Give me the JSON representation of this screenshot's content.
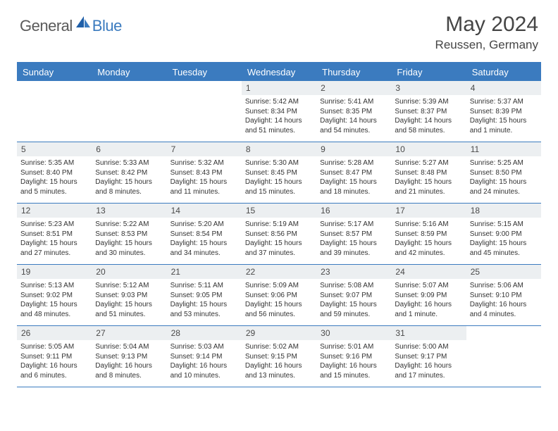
{
  "brand": {
    "part1": "General",
    "part2": "Blue"
  },
  "title": "May 2024",
  "location": "Reussen, Germany",
  "colors": {
    "accent": "#3b7bbf",
    "dayNumBg": "#eceff1",
    "text": "#454545"
  },
  "weekdays": [
    "Sunday",
    "Monday",
    "Tuesday",
    "Wednesday",
    "Thursday",
    "Friday",
    "Saturday"
  ],
  "weeks": [
    [
      null,
      null,
      null,
      {
        "n": "1",
        "sunrise": "5:42 AM",
        "sunset": "8:34 PM",
        "daylight": "14 hours and 51 minutes."
      },
      {
        "n": "2",
        "sunrise": "5:41 AM",
        "sunset": "8:35 PM",
        "daylight": "14 hours and 54 minutes."
      },
      {
        "n": "3",
        "sunrise": "5:39 AM",
        "sunset": "8:37 PM",
        "daylight": "14 hours and 58 minutes."
      },
      {
        "n": "4",
        "sunrise": "5:37 AM",
        "sunset": "8:39 PM",
        "daylight": "15 hours and 1 minute."
      }
    ],
    [
      {
        "n": "5",
        "sunrise": "5:35 AM",
        "sunset": "8:40 PM",
        "daylight": "15 hours and 5 minutes."
      },
      {
        "n": "6",
        "sunrise": "5:33 AM",
        "sunset": "8:42 PM",
        "daylight": "15 hours and 8 minutes."
      },
      {
        "n": "7",
        "sunrise": "5:32 AM",
        "sunset": "8:43 PM",
        "daylight": "15 hours and 11 minutes."
      },
      {
        "n": "8",
        "sunrise": "5:30 AM",
        "sunset": "8:45 PM",
        "daylight": "15 hours and 15 minutes."
      },
      {
        "n": "9",
        "sunrise": "5:28 AM",
        "sunset": "8:47 PM",
        "daylight": "15 hours and 18 minutes."
      },
      {
        "n": "10",
        "sunrise": "5:27 AM",
        "sunset": "8:48 PM",
        "daylight": "15 hours and 21 minutes."
      },
      {
        "n": "11",
        "sunrise": "5:25 AM",
        "sunset": "8:50 PM",
        "daylight": "15 hours and 24 minutes."
      }
    ],
    [
      {
        "n": "12",
        "sunrise": "5:23 AM",
        "sunset": "8:51 PM",
        "daylight": "15 hours and 27 minutes."
      },
      {
        "n": "13",
        "sunrise": "5:22 AM",
        "sunset": "8:53 PM",
        "daylight": "15 hours and 30 minutes."
      },
      {
        "n": "14",
        "sunrise": "5:20 AM",
        "sunset": "8:54 PM",
        "daylight": "15 hours and 34 minutes."
      },
      {
        "n": "15",
        "sunrise": "5:19 AM",
        "sunset": "8:56 PM",
        "daylight": "15 hours and 37 minutes."
      },
      {
        "n": "16",
        "sunrise": "5:17 AM",
        "sunset": "8:57 PM",
        "daylight": "15 hours and 39 minutes."
      },
      {
        "n": "17",
        "sunrise": "5:16 AM",
        "sunset": "8:59 PM",
        "daylight": "15 hours and 42 minutes."
      },
      {
        "n": "18",
        "sunrise": "5:15 AM",
        "sunset": "9:00 PM",
        "daylight": "15 hours and 45 minutes."
      }
    ],
    [
      {
        "n": "19",
        "sunrise": "5:13 AM",
        "sunset": "9:02 PM",
        "daylight": "15 hours and 48 minutes."
      },
      {
        "n": "20",
        "sunrise": "5:12 AM",
        "sunset": "9:03 PM",
        "daylight": "15 hours and 51 minutes."
      },
      {
        "n": "21",
        "sunrise": "5:11 AM",
        "sunset": "9:05 PM",
        "daylight": "15 hours and 53 minutes."
      },
      {
        "n": "22",
        "sunrise": "5:09 AM",
        "sunset": "9:06 PM",
        "daylight": "15 hours and 56 minutes."
      },
      {
        "n": "23",
        "sunrise": "5:08 AM",
        "sunset": "9:07 PM",
        "daylight": "15 hours and 59 minutes."
      },
      {
        "n": "24",
        "sunrise": "5:07 AM",
        "sunset": "9:09 PM",
        "daylight": "16 hours and 1 minute."
      },
      {
        "n": "25",
        "sunrise": "5:06 AM",
        "sunset": "9:10 PM",
        "daylight": "16 hours and 4 minutes."
      }
    ],
    [
      {
        "n": "26",
        "sunrise": "5:05 AM",
        "sunset": "9:11 PM",
        "daylight": "16 hours and 6 minutes."
      },
      {
        "n": "27",
        "sunrise": "5:04 AM",
        "sunset": "9:13 PM",
        "daylight": "16 hours and 8 minutes."
      },
      {
        "n": "28",
        "sunrise": "5:03 AM",
        "sunset": "9:14 PM",
        "daylight": "16 hours and 10 minutes."
      },
      {
        "n": "29",
        "sunrise": "5:02 AM",
        "sunset": "9:15 PM",
        "daylight": "16 hours and 13 minutes."
      },
      {
        "n": "30",
        "sunrise": "5:01 AM",
        "sunset": "9:16 PM",
        "daylight": "16 hours and 15 minutes."
      },
      {
        "n": "31",
        "sunrise": "5:00 AM",
        "sunset": "9:17 PM",
        "daylight": "16 hours and 17 minutes."
      },
      null
    ]
  ],
  "labels": {
    "sunrise": "Sunrise: ",
    "sunset": "Sunset: ",
    "daylight": "Daylight: "
  }
}
